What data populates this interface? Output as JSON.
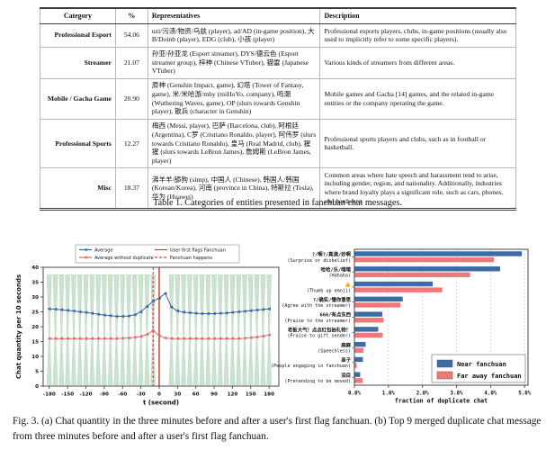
{
  "table": {
    "caption": "Table 1.  Categories of entities presented in fanchuan chat messages.",
    "headers": [
      "Category",
      "%",
      "Representatives",
      "Description"
    ],
    "rows": [
      {
        "category": "Professional Esport",
        "percent": "54.06",
        "representatives": "uzi/污渍/物资/乌兹 (player), ad/AD (in-game position), 大B/Doinb (player), EDG (club), 小孩 (player)",
        "description": "Professional esports players, clubs, in-game positions (usually also used to implicitly refer to some specific players)."
      },
      {
        "category": "Streamer",
        "percent": "21.07",
        "representatives": "孙亚/孙亚龙 (Esport streamer), DYS/德云色 (Esport streamer group), 梓神 (Chinese VTuber), 猫雷 (Japanese VTuber)",
        "description": "Various kinds of streamers from different areas."
      },
      {
        "category": "Mobile / Gacha Game",
        "percent": "20.90",
        "representatives": "原神 (Genshin Impact, game), 幻塔 (Tower of Fantasy, game), 米/米哈游/mhy (miHoYo, company), 鸣潮 (Wuthering Waves, game), OP (slurs towards Genshin player), 散兵 (character in Genshin)",
        "description": "Mobile games and Gacha [14] games, and the related in-game entities or the company operating the game."
      },
      {
        "category": "Professional Sports",
        "percent": "12.27",
        "representatives": "梅西 (Messi, player), 巴萨 (Barcelona, club), 阿根廷 (Argentina), C罗 (Cristiano Ronaldo, player), 阿伟罗 (slurs towards Cristiano Ronaldo), 皇马 (Real Madrid, club), 猩猩 (slurs towards LeBron James), 詹姆斯 (LeBron James, player)",
        "description": "Professional sports players and clubs, such as in football or basketball."
      },
      {
        "category": "Misc",
        "percent": "18.37",
        "representatives": "沸羊羊/舔狗 (simp), 中国人 (Chinese), 韩国人/韩国 (Korean/Korea), 河南 (province in China), 特斯拉 (Tesla), 华为 (Huawei)",
        "description": "Common areas where hate speech and harassment tend to arise, including gender, region, and nationality. Additionally, industries where brand loyalty plays a significant role, such as cars, phones, and hardware."
      }
    ]
  },
  "figure": {
    "caption": "Fig. 3.  (a) Chat quantity in the three minutes before and after a user's first flag fanchuan. (b) Top 9 merged duplicate chat message from three minutes before and after a user's first flag fanchuan."
  },
  "chart_data": [
    {
      "type": "line",
      "title": "",
      "xlabel": "t (second)",
      "ylabel": "Chat quantity per 10 seconds",
      "xlim": [
        -190,
        196
      ],
      "ylim": [
        0,
        40
      ],
      "xticks": [
        -180,
        -150,
        -120,
        -90,
        -60,
        -30,
        0,
        30,
        60,
        90,
        120,
        150,
        180
      ],
      "yticks": [
        0,
        5,
        10,
        15,
        20,
        25,
        30,
        35,
        40
      ],
      "x": [
        -180,
        -170,
        -160,
        -150,
        -140,
        -130,
        -120,
        -110,
        -100,
        -90,
        -80,
        -70,
        -60,
        -50,
        -40,
        -30,
        -20,
        -10,
        0,
        10,
        20,
        30,
        40,
        50,
        60,
        70,
        80,
        90,
        100,
        110,
        120,
        130,
        140,
        150,
        160,
        170,
        180
      ],
      "series": [
        {
          "name": "Average",
          "color": "#3465a4",
          "values": [
            26.0,
            25.9,
            25.7,
            25.5,
            25.3,
            25.0,
            24.8,
            24.5,
            24.2,
            23.9,
            23.7,
            23.5,
            23.5,
            23.6,
            24.0,
            25.0,
            26.8,
            28.6,
            29.6,
            31.2,
            26.6,
            25.3,
            24.9,
            24.7,
            24.5,
            24.4,
            24.4,
            24.4,
            24.5,
            24.6,
            24.8,
            25.0,
            25.2,
            25.4,
            25.6,
            25.8,
            26.0
          ]
        },
        {
          "name": "Average without duplicate",
          "color": "#dd6b6b",
          "values": [
            16.0,
            16.0,
            16.0,
            16.0,
            16.0,
            16.0,
            16.0,
            16.0,
            16.0,
            16.0,
            16.0,
            16.0,
            16.1,
            16.2,
            16.4,
            16.7,
            17.4,
            18.7,
            17.0,
            16.2,
            16.0,
            16.0,
            16.0,
            16.0,
            16.0,
            16.0,
            16.0,
            16.0,
            16.0,
            16.0,
            16.0,
            16.0,
            16.1,
            16.3,
            16.5,
            16.8,
            17.2
          ]
        }
      ],
      "vlines": [
        {
          "name": "User first flags Fanchuan",
          "x": 0,
          "style": "solid",
          "color": "#c0453f"
        },
        {
          "name": "Fanchuan happens",
          "x": -10,
          "style": "dashed",
          "color": "#c0453f"
        }
      ],
      "violins": {
        "color": "#8fbf96",
        "top": 37.5,
        "bottom": 0.4,
        "waist_y": 17,
        "skip_x": [
          0,
          10
        ]
      },
      "grid": false,
      "legend_position": "upper center"
    },
    {
      "type": "bar",
      "orientation": "horizontal",
      "title": "",
      "xlabel": "fraction of duplicate chat",
      "xlim": [
        0,
        5.1
      ],
      "xticks": [
        0,
        1,
        2,
        3,
        4,
        5
      ],
      "xtick_labels": [
        "0.0%",
        "1.0%",
        "2.0%",
        "3.0%",
        "4.0%",
        "5.0%"
      ],
      "categories": [
        {
          "label": "?/啊?/真滴/妙啊",
          "sublabel": "(Surprise or disbelief)"
        },
        {
          "label": "哈哈/乐/嘻嘻",
          "sublabel": "(Hahaha)"
        },
        {
          "label": "👍",
          "sublabel": "(Thumb up emoji)"
        },
        {
          "label": "?/确实/懂你意思",
          "sublabel": "(Agree with the streamer)"
        },
        {
          "label": "666/有点东西",
          "sublabel": "(Praise to the streamer)"
        },
        {
          "label": "老板大气！点点红包抽礼物！",
          "sublabel": "(Praise to gift sender)"
        },
        {
          "label": "麻麻",
          "sublabel": "(Speechless)"
        },
        {
          "label": "串子",
          "sublabel": "(People engaging in fanchuan)"
        },
        {
          "label": "泪目",
          "sublabel": "(Pretending to be moved)"
        }
      ],
      "series": [
        {
          "name": "Near fanchuan",
          "color": "#3d6ba6",
          "values": [
            4.92,
            4.28,
            2.3,
            1.42,
            0.82,
            0.7,
            0.33,
            0.25,
            0.17
          ]
        },
        {
          "name": "Far away fanchuan",
          "color": "#ef7878",
          "values": [
            4.1,
            3.4,
            2.58,
            1.35,
            0.86,
            0.83,
            0.27,
            0.07,
            0.24
          ]
        }
      ],
      "grid": true,
      "legend_position": "lower right"
    }
  ]
}
